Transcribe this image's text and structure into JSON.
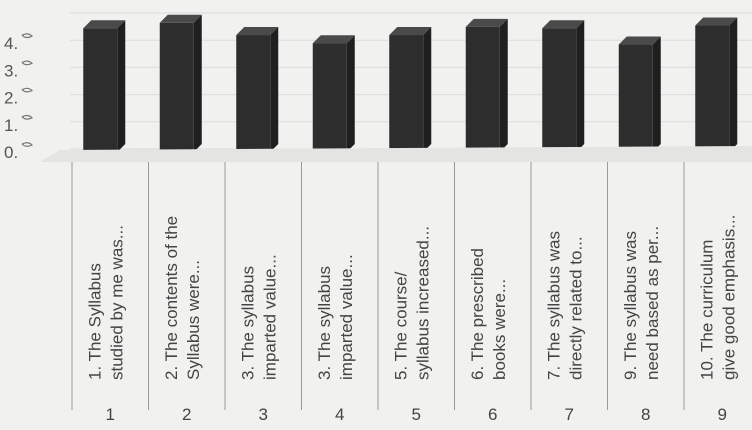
{
  "chart_data": {
    "type": "bar",
    "categories": [
      "1. The Syllabus studied by me was...",
      "2. The contents of the Syllabus were...",
      "3. The syllabus imparted value...",
      "3. The syllabus imparted value...",
      "5. The course/ syllabus increased...",
      "6. The prescribed books were...",
      "7. The syllabus was directly related to...",
      "9. The syllabus was need based as per...",
      "10. The curriculum give good emphasis..."
    ],
    "category_numbers": [
      "1",
      "2",
      "3",
      "4",
      "5",
      "6",
      "7",
      "8",
      "9"
    ],
    "values": [
      4.55,
      4.75,
      4.3,
      4.0,
      4.3,
      4.6,
      4.55,
      3.95,
      4.65
    ],
    "y_ticks": [
      "0.",
      "1.",
      "2.",
      "3.",
      "4."
    ],
    "ylim": [
      0,
      5
    ],
    "title": "",
    "xlabel": "",
    "ylabel": "",
    "bar_color": "#2d2d2d",
    "grid": true,
    "legend": "none"
  }
}
